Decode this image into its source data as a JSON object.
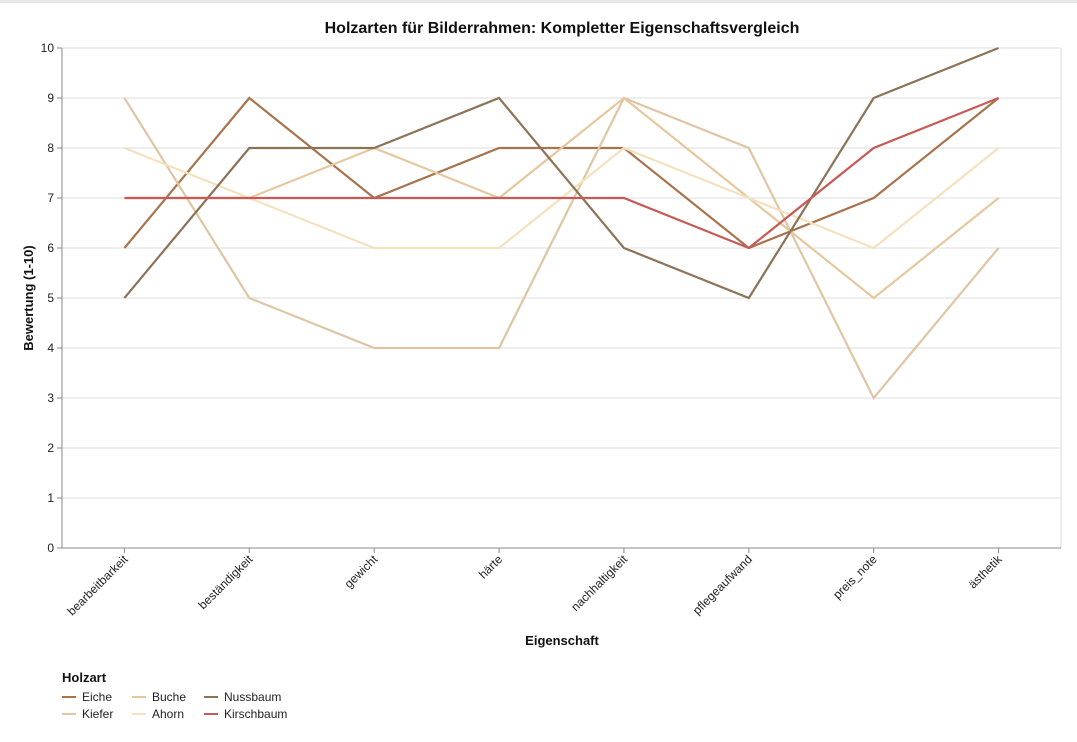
{
  "chart_data": {
    "type": "line",
    "title": "Holzarten für Bilderrahmen: Kompletter Eigenschaftsvergleich",
    "xlabel": "Eigenschaft",
    "ylabel": "Bewertung (1-10)",
    "ylim": [
      0,
      10
    ],
    "yticks": [
      0,
      1,
      2,
      3,
      4,
      5,
      6,
      7,
      8,
      9,
      10
    ],
    "grid": true,
    "legend_position": "bottom-left",
    "legend_title": "Holzart",
    "categories": [
      "bearbeitbarkeit",
      "beständigkeit",
      "gewicht",
      "härte",
      "nachhaltigkeit",
      "pflegeaufwand",
      "preis_note",
      "ästhetik"
    ],
    "series": [
      {
        "name": "Eiche",
        "color": "#A8734C",
        "values": [
          6,
          9,
          7,
          8,
          8,
          6,
          7,
          9
        ]
      },
      {
        "name": "Kiefer",
        "color": "#DEC6A4",
        "values": [
          9,
          5,
          4,
          4,
          9,
          8,
          3,
          6
        ]
      },
      {
        "name": "Buche",
        "color": "#E6C79E",
        "values": [
          7,
          7,
          8,
          7,
          9,
          7,
          5,
          7
        ]
      },
      {
        "name": "Ahorn",
        "color": "#F5E1BE",
        "values": [
          8,
          7,
          6,
          6,
          8,
          7,
          6,
          8
        ]
      },
      {
        "name": "Nussbaum",
        "color": "#8C7358",
        "values": [
          5,
          8,
          8,
          9,
          6,
          5,
          9,
          10
        ]
      },
      {
        "name": "Kirschbaum",
        "color": "#C85A55",
        "values": [
          7,
          7,
          7,
          7,
          7,
          6,
          8,
          9
        ]
      }
    ]
  },
  "legend": {
    "title": "Holzart",
    "items": [
      {
        "label": "Eiche",
        "color": "#A8734C"
      },
      {
        "label": "Buche",
        "color": "#E6C79E"
      },
      {
        "label": "Nussbaum",
        "color": "#8C7358"
      },
      {
        "label": "Kiefer",
        "color": "#DEC6A4"
      },
      {
        "label": "Ahorn",
        "color": "#F5E1BE"
      },
      {
        "label": "Kirschbaum",
        "color": "#C85A55"
      }
    ]
  }
}
